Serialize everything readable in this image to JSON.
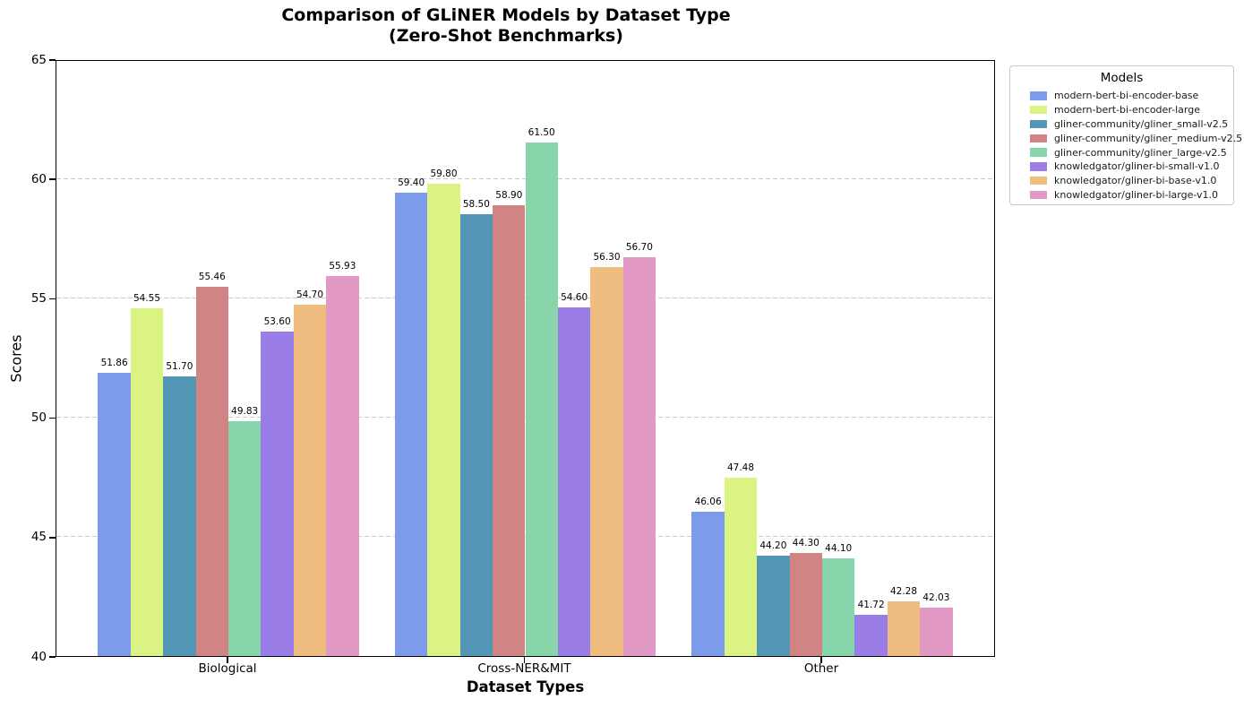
{
  "title": {
    "line1": "Comparison of GLiNER Models by Dataset Type",
    "line2": "(Zero-Shot Benchmarks)"
  },
  "axes": {
    "xlabel": "Dataset Types",
    "ylabel": "Scores"
  },
  "legend": {
    "title": "Models",
    "position": "outside-right"
  },
  "chart_data": {
    "type": "bar",
    "title": "Comparison of GLiNER Models by Dataset Type (Zero-Shot Benchmarks)",
    "xlabel": "Dataset Types",
    "ylabel": "Scores",
    "ylim": [
      40,
      65
    ],
    "y_ticks": [
      40,
      45,
      50,
      55,
      60,
      65
    ],
    "grid": "horizontal-dashed",
    "grid_color": "#c9c9c9",
    "legend_title": "Models",
    "legend_position": "outside right",
    "bar_labels": "values shown above bars, 2 decimals",
    "categories": [
      "Biological",
      "Cross-NER&MIT",
      "Other"
    ],
    "series": [
      {
        "name": "modern-bert-bi-encoder-base",
        "color": "#7D9BEB",
        "values": [
          51.86,
          59.4,
          46.06
        ]
      },
      {
        "name": "modern-bert-bi-encoder-large",
        "color": "#DAF382",
        "values": [
          54.55,
          59.8,
          47.48
        ]
      },
      {
        "name": "gliner-community/gliner_small-v2.5",
        "color": "#5396B5",
        "values": [
          51.7,
          58.5,
          44.2
        ]
      },
      {
        "name": "gliner-community/gliner_medium-v2.5",
        "color": "#D18484",
        "values": [
          55.46,
          58.9,
          44.3
        ]
      },
      {
        "name": "gliner-community/gliner_large-v2.5",
        "color": "#88D4AB",
        "values": [
          49.83,
          61.5,
          44.1
        ]
      },
      {
        "name": "knowledgator/gliner-bi-small-v1.0",
        "color": "#9A7DE6",
        "values": [
          53.6,
          54.6,
          41.72
        ]
      },
      {
        "name": "knowledgator/gliner-bi-base-v1.0",
        "color": "#EFBD80",
        "values": [
          54.7,
          56.3,
          42.28
        ]
      },
      {
        "name": "knowledgator/gliner-bi-large-v1.0",
        "color": "#E299C5",
        "values": [
          55.93,
          56.7,
          42.03
        ]
      }
    ]
  }
}
